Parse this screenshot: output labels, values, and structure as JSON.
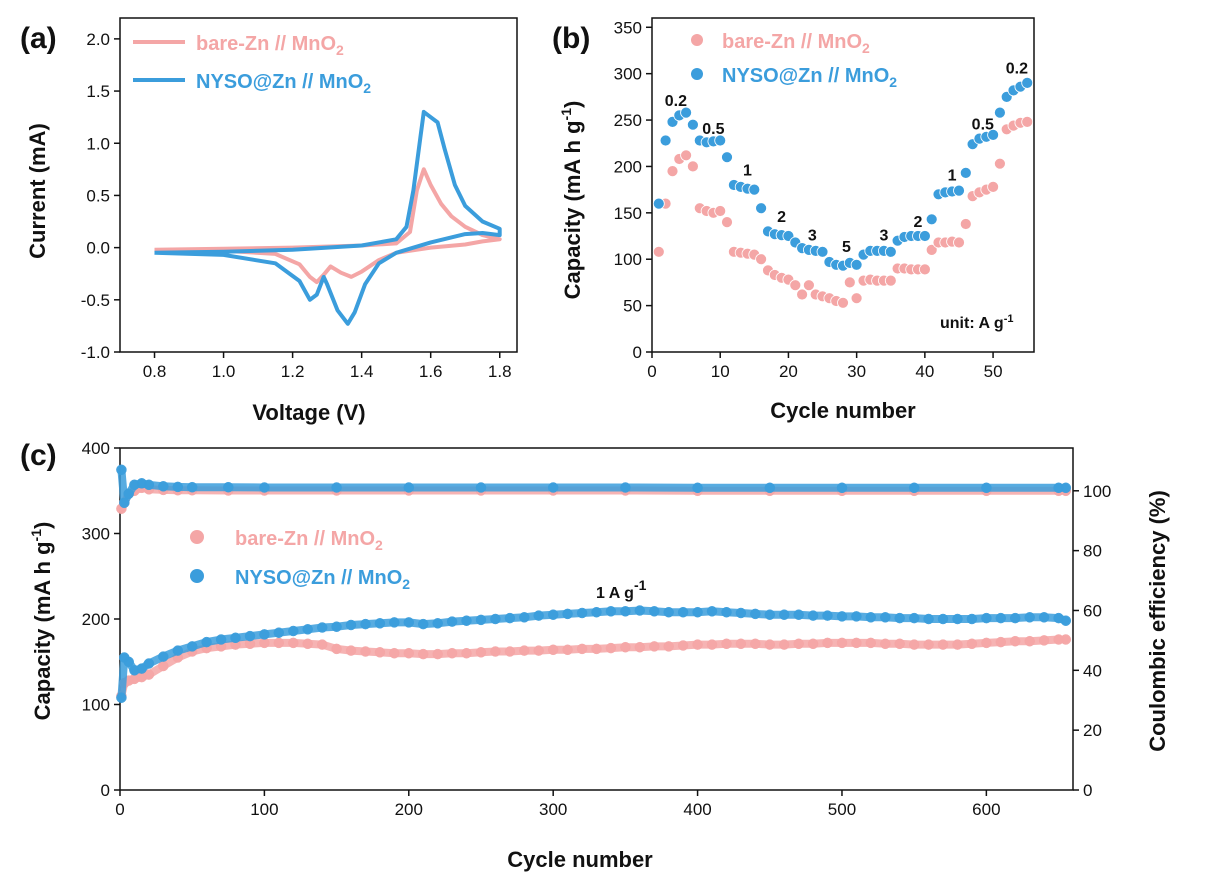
{
  "colors": {
    "bare": "#f4a6a6",
    "nyso": "#3b9ddc",
    "axis": "#111111"
  },
  "legend": {
    "bare_prefix": "bare-Zn // MnO",
    "bare_sub": "2",
    "nyso_prefix": "NYSO@Zn // MnO",
    "nyso_sub": "2"
  },
  "chart_data": [
    {
      "panel": "(a)",
      "type": "line",
      "xlabel": "Voltage (V)",
      "ylabel": "Current (mA)",
      "xlim": [
        0.7,
        1.85
      ],
      "ylim": [
        -1.0,
        2.2
      ],
      "xticks": [
        "0.8",
        "1.0",
        "1.2",
        "1.4",
        "1.6",
        "1.8"
      ],
      "yticks": [
        "-1.0",
        "-0.5",
        "0.0",
        "0.5",
        "1.0",
        "1.5",
        "2.0"
      ],
      "legend_position": "top-right",
      "series": [
        {
          "name": "bare-Zn // MnO2",
          "x": [
            0.8,
            1.0,
            1.2,
            1.4,
            1.5,
            1.54,
            1.56,
            1.58,
            1.6,
            1.63,
            1.66,
            1.7,
            1.75,
            1.8,
            1.75,
            1.7,
            1.6,
            1.5,
            1.45,
            1.4,
            1.37,
            1.34,
            1.31,
            1.29,
            1.27,
            1.25,
            1.22,
            1.15,
            1.0,
            0.8
          ],
          "y": [
            -0.02,
            -0.01,
            0.0,
            0.02,
            0.04,
            0.15,
            0.55,
            0.75,
            0.6,
            0.42,
            0.3,
            0.2,
            0.12,
            0.08,
            0.06,
            0.03,
            0.0,
            -0.05,
            -0.12,
            -0.23,
            -0.28,
            -0.24,
            -0.18,
            -0.26,
            -0.33,
            -0.28,
            -0.16,
            -0.06,
            -0.03,
            -0.02
          ]
        },
        {
          "name": "NYSO@Zn // MnO2",
          "x": [
            0.8,
            1.0,
            1.2,
            1.4,
            1.5,
            1.53,
            1.55,
            1.57,
            1.58,
            1.6,
            1.62,
            1.64,
            1.67,
            1.7,
            1.75,
            1.8,
            1.8,
            1.75,
            1.7,
            1.6,
            1.5,
            1.45,
            1.41,
            1.38,
            1.36,
            1.33,
            1.3,
            1.29,
            1.27,
            1.25,
            1.22,
            1.15,
            1.0,
            0.8
          ],
          "y": [
            -0.05,
            -0.04,
            -0.02,
            0.02,
            0.08,
            0.2,
            0.55,
            1.05,
            1.3,
            1.25,
            1.2,
            0.95,
            0.6,
            0.4,
            0.25,
            0.18,
            0.12,
            0.14,
            0.13,
            0.05,
            -0.05,
            -0.15,
            -0.35,
            -0.62,
            -0.73,
            -0.6,
            -0.35,
            -0.28,
            -0.45,
            -0.5,
            -0.32,
            -0.15,
            -0.07,
            -0.05
          ]
        }
      ]
    },
    {
      "panel": "(b)",
      "type": "scatter",
      "xlabel": "Cycle number",
      "ylabel": "Capacity (mA h g",
      "ylabel_sup": "-1",
      "ylabel_close": ")",
      "xlim": [
        0,
        56
      ],
      "ylim": [
        0,
        360
      ],
      "xticks": [
        "0",
        "10",
        "20",
        "30",
        "40",
        "50"
      ],
      "yticks": [
        "0",
        "50",
        "100",
        "150",
        "200",
        "250",
        "300",
        "350"
      ],
      "legend_position": "top-left",
      "unit_text": "unit: A g",
      "unit_sup": "-1",
      "rate_labels": [
        {
          "text": "0.2",
          "x": 3.5,
          "y": 265
        },
        {
          "text": "0.5",
          "x": 9.0,
          "y": 235
        },
        {
          "text": "1",
          "x": 14.0,
          "y": 190
        },
        {
          "text": "2",
          "x": 19.0,
          "y": 140
        },
        {
          "text": "3",
          "x": 23.5,
          "y": 120
        },
        {
          "text": "5",
          "x": 28.5,
          "y": 108
        },
        {
          "text": "3",
          "x": 34.0,
          "y": 120
        },
        {
          "text": "2",
          "x": 39.0,
          "y": 135
        },
        {
          "text": "1",
          "x": 44.0,
          "y": 185
        },
        {
          "text": "0.5",
          "x": 48.5,
          "y": 240
        },
        {
          "text": "0.2",
          "x": 53.5,
          "y": 300
        }
      ],
      "series": [
        {
          "name": "bare-Zn // MnO2",
          "x": [
            1,
            2,
            3,
            4,
            5,
            6,
            7,
            8,
            9,
            10,
            11,
            12,
            13,
            14,
            15,
            16,
            17,
            18,
            19,
            20,
            21,
            22,
            23,
            24,
            25,
            26,
            27,
            28,
            29,
            30,
            31,
            32,
            33,
            34,
            35,
            36,
            37,
            38,
            39,
            40,
            41,
            42,
            43,
            44,
            45,
            46,
            47,
            48,
            49,
            50,
            51,
            52,
            53,
            54,
            55
          ],
          "y": [
            108,
            160,
            195,
            208,
            212,
            200,
            155,
            152,
            150,
            152,
            140,
            108,
            107,
            106,
            105,
            100,
            88,
            83,
            80,
            78,
            72,
            62,
            72,
            62,
            60,
            58,
            55,
            53,
            75,
            58,
            77,
            78,
            77,
            77,
            77,
            90,
            90,
            89,
            89,
            89,
            110,
            118,
            118,
            119,
            118,
            138,
            168,
            172,
            175,
            178,
            203,
            240,
            244,
            247,
            248
          ]
        },
        {
          "name": "NYSO@Zn // MnO2",
          "x": [
            1,
            2,
            3,
            4,
            5,
            6,
            7,
            8,
            9,
            10,
            11,
            12,
            13,
            14,
            15,
            16,
            17,
            18,
            19,
            20,
            21,
            22,
            23,
            24,
            25,
            26,
            27,
            28,
            29,
            30,
            31,
            32,
            33,
            34,
            35,
            36,
            37,
            38,
            39,
            40,
            41,
            42,
            43,
            44,
            45,
            46,
            47,
            48,
            49,
            50,
            51,
            52,
            53,
            54,
            55
          ],
          "y": [
            160,
            228,
            248,
            255,
            258,
            245,
            228,
            226,
            227,
            228,
            210,
            180,
            178,
            176,
            175,
            155,
            130,
            127,
            126,
            125,
            118,
            112,
            110,
            109,
            108,
            97,
            94,
            93,
            96,
            94,
            105,
            109,
            109,
            109,
            108,
            120,
            124,
            125,
            125,
            125,
            143,
            170,
            172,
            173,
            174,
            193,
            224,
            230,
            232,
            234,
            258,
            275,
            282,
            286,
            290
          ]
        }
      ]
    },
    {
      "panel": "(c)",
      "type": "scatter",
      "xlabel": "Cycle number",
      "ylabel": "Capacity (mA h g",
      "ylabel_sup": "-1",
      "ylabel_close": ")",
      "y2label": "Coulombic efficiency (%)",
      "xlim": [
        0,
        660
      ],
      "ylim": [
        0,
        400
      ],
      "y2lim": [
        0,
        114.3
      ],
      "xticks": [
        "0",
        "100",
        "200",
        "300",
        "400",
        "500",
        "600"
      ],
      "yticks": [
        "0",
        "100",
        "200",
        "300",
        "400"
      ],
      "y2ticks": [
        "0",
        "20",
        "40",
        "60",
        "80",
        "100"
      ],
      "legend_position": "upper-left",
      "rate_text": "1  A g",
      "rate_sup": "-1",
      "series": [
        {
          "name": "bare-Zn // MnO2 capacity",
          "x": [
            1,
            3,
            6,
            10,
            15,
            20,
            30,
            40,
            50,
            60,
            70,
            80,
            90,
            100,
            110,
            120,
            130,
            140,
            150,
            160,
            170,
            180,
            190,
            200,
            210,
            220,
            230,
            240,
            250,
            260,
            270,
            280,
            290,
            300,
            310,
            320,
            330,
            340,
            350,
            360,
            370,
            380,
            390,
            400,
            410,
            420,
            430,
            440,
            450,
            460,
            470,
            480,
            490,
            500,
            510,
            520,
            530,
            540,
            550,
            560,
            570,
            580,
            590,
            600,
            610,
            620,
            630,
            640,
            650,
            655
          ],
          "y": [
            110,
            125,
            128,
            130,
            132,
            135,
            145,
            155,
            162,
            166,
            168,
            170,
            171,
            172,
            172,
            172,
            171,
            170,
            165,
            163,
            162,
            161,
            160,
            160,
            159,
            159,
            160,
            160,
            161,
            162,
            162,
            163,
            163,
            164,
            164,
            165,
            165,
            166,
            167,
            167,
            168,
            168,
            169,
            170,
            170,
            171,
            171,
            171,
            170,
            170,
            171,
            171,
            172,
            172,
            172,
            172,
            171,
            171,
            170,
            170,
            170,
            170,
            171,
            172,
            173,
            174,
            174,
            175,
            176,
            176
          ]
        },
        {
          "name": "NYSO@Zn // MnO2 capacity",
          "x": [
            1,
            3,
            6,
            10,
            15,
            20,
            30,
            40,
            50,
            60,
            70,
            80,
            90,
            100,
            110,
            120,
            130,
            140,
            150,
            160,
            170,
            180,
            190,
            200,
            210,
            220,
            230,
            240,
            250,
            260,
            270,
            280,
            290,
            300,
            310,
            320,
            330,
            340,
            350,
            360,
            370,
            380,
            390,
            400,
            410,
            420,
            430,
            440,
            450,
            460,
            470,
            480,
            490,
            500,
            510,
            520,
            530,
            540,
            550,
            560,
            570,
            580,
            590,
            600,
            610,
            620,
            630,
            640,
            650,
            655
          ],
          "y": [
            108,
            155,
            150,
            140,
            142,
            148,
            156,
            163,
            168,
            173,
            176,
            178,
            180,
            182,
            184,
            186,
            188,
            190,
            191,
            193,
            194,
            195,
            196,
            196,
            194,
            195,
            197,
            198,
            199,
            200,
            201,
            202,
            204,
            205,
            206,
            207,
            208,
            209,
            209,
            210,
            209,
            208,
            208,
            208,
            209,
            208,
            207,
            206,
            205,
            205,
            205,
            204,
            204,
            203,
            203,
            202,
            202,
            201,
            201,
            200,
            200,
            200,
            200,
            201,
            201,
            201,
            202,
            202,
            201,
            198
          ]
        },
        {
          "name": "bare-Zn // MnO2 CE",
          "axis": "right",
          "x": [
            1,
            3,
            6,
            10,
            15,
            20,
            30,
            40,
            50,
            75,
            100,
            150,
            200,
            250,
            300,
            350,
            400,
            450,
            500,
            550,
            600,
            650,
            655
          ],
          "y": [
            94,
            96,
            99,
            100,
            101,
            100.5,
            100.3,
            100.2,
            100.2,
            100.1,
            100.1,
            100.1,
            100.1,
            100.1,
            100.1,
            100.1,
            100,
            100,
            100,
            100,
            100,
            100,
            100
          ]
        },
        {
          "name": "NYSO@Zn // MnO2 CE",
          "axis": "right",
          "x": [
            1,
            3,
            6,
            10,
            15,
            20,
            30,
            40,
            50,
            75,
            100,
            150,
            200,
            250,
            300,
            350,
            400,
            450,
            500,
            550,
            600,
            650,
            655
          ],
          "y": [
            107,
            96,
            99,
            102,
            102.5,
            102,
            101.5,
            101.3,
            101.2,
            101.2,
            101.1,
            101.1,
            101.1,
            101.1,
            101.1,
            101.1,
            101,
            101,
            101,
            101,
            101,
            101,
            101
          ]
        }
      ]
    }
  ]
}
